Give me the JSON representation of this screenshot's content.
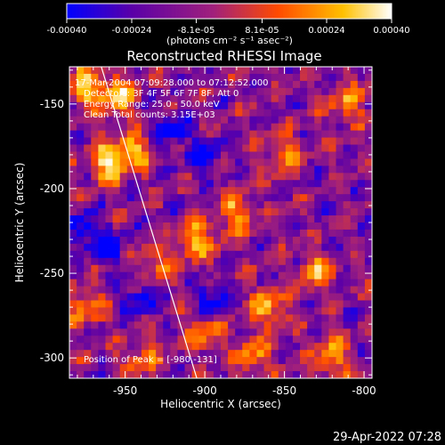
{
  "colorbar": {
    "tick_labels": [
      "-0.00040",
      "-0.00024",
      "-8.1e-05",
      "8.1e-05",
      "0.00024",
      "0.00040"
    ],
    "tick_values": [
      -0.0004,
      -0.00024,
      -8.1e-05,
      8.1e-05,
      0.00024,
      0.0004
    ],
    "range": [
      -0.0004,
      0.0004
    ],
    "units_label": "(photons cm⁻² s⁻¹ asec⁻²)"
  },
  "info": {
    "time_range": "17-Mar-2004 07:09:28.000 to 07:12:52.000",
    "detectors": "Detectors: 3F 4F 5F 6F 7F 8F, Att 0",
    "energy": "Energy Range: 25.0 - 50.0 keV",
    "clean": "Clean    Total counts: 3.15E+03",
    "peak": "Position of Peak = [-980,-131]"
  },
  "footer_timestamp": "29-Apr-2022 07:28",
  "chart_data": {
    "type": "heatmap",
    "title": "Reconstructed RHESSI Image",
    "xlabel": "Heliocentric X (arcsec)",
    "ylabel": "Heliocentric Y (arcsec)",
    "xlim": [
      -985,
      -795
    ],
    "ylim": [
      -312,
      -128
    ],
    "x_ticks": [
      -950,
      -900,
      -850,
      -800
    ],
    "x_tick_labels": [
      "-950",
      "-900",
      "-850",
      "-800"
    ],
    "y_ticks": [
      -150,
      -200,
      -250,
      -300
    ],
    "y_tick_labels": [
      "-150",
      "-200",
      "-250",
      "-300"
    ],
    "colormap": [
      "#0000ff",
      "#5a00a8",
      "#a0207c",
      "#ff4a00",
      "#ffc000",
      "#ffffff"
    ],
    "limb_line": [
      [
        -965,
        -128
      ],
      [
        -905,
        -312
      ]
    ],
    "peak": [
      -980,
      -131
    ],
    "hotspots": [
      {
        "x": -962,
        "y": -185,
        "strength": 1.0
      },
      {
        "x": -945,
        "y": -178,
        "strength": 0.9
      },
      {
        "x": -955,
        "y": -145,
        "strength": 0.95
      },
      {
        "x": -975,
        "y": -140,
        "strength": 1.0
      },
      {
        "x": -905,
        "y": -230,
        "strength": 0.9
      },
      {
        "x": -880,
        "y": -215,
        "strength": 0.8
      },
      {
        "x": -860,
        "y": -270,
        "strength": 0.85
      },
      {
        "x": -830,
        "y": -250,
        "strength": 0.75
      },
      {
        "x": -820,
        "y": -300,
        "strength": 0.8
      },
      {
        "x": -870,
        "y": -300,
        "strength": 0.7
      },
      {
        "x": -900,
        "y": -285,
        "strength": 0.7
      },
      {
        "x": -930,
        "y": -245,
        "strength": 0.6
      },
      {
        "x": -940,
        "y": -300,
        "strength": 0.6
      },
      {
        "x": -810,
        "y": -150,
        "strength": 0.7
      },
      {
        "x": -850,
        "y": -180,
        "strength": 0.65
      },
      {
        "x": -975,
        "y": -270,
        "strength": 0.7
      }
    ],
    "coldspots": [
      {
        "x": -960,
        "y": -235
      },
      {
        "x": -975,
        "y": -225
      },
      {
        "x": -920,
        "y": -165
      },
      {
        "x": -900,
        "y": -180
      },
      {
        "x": -940,
        "y": -265
      },
      {
        "x": -895,
        "y": -265
      }
    ]
  }
}
